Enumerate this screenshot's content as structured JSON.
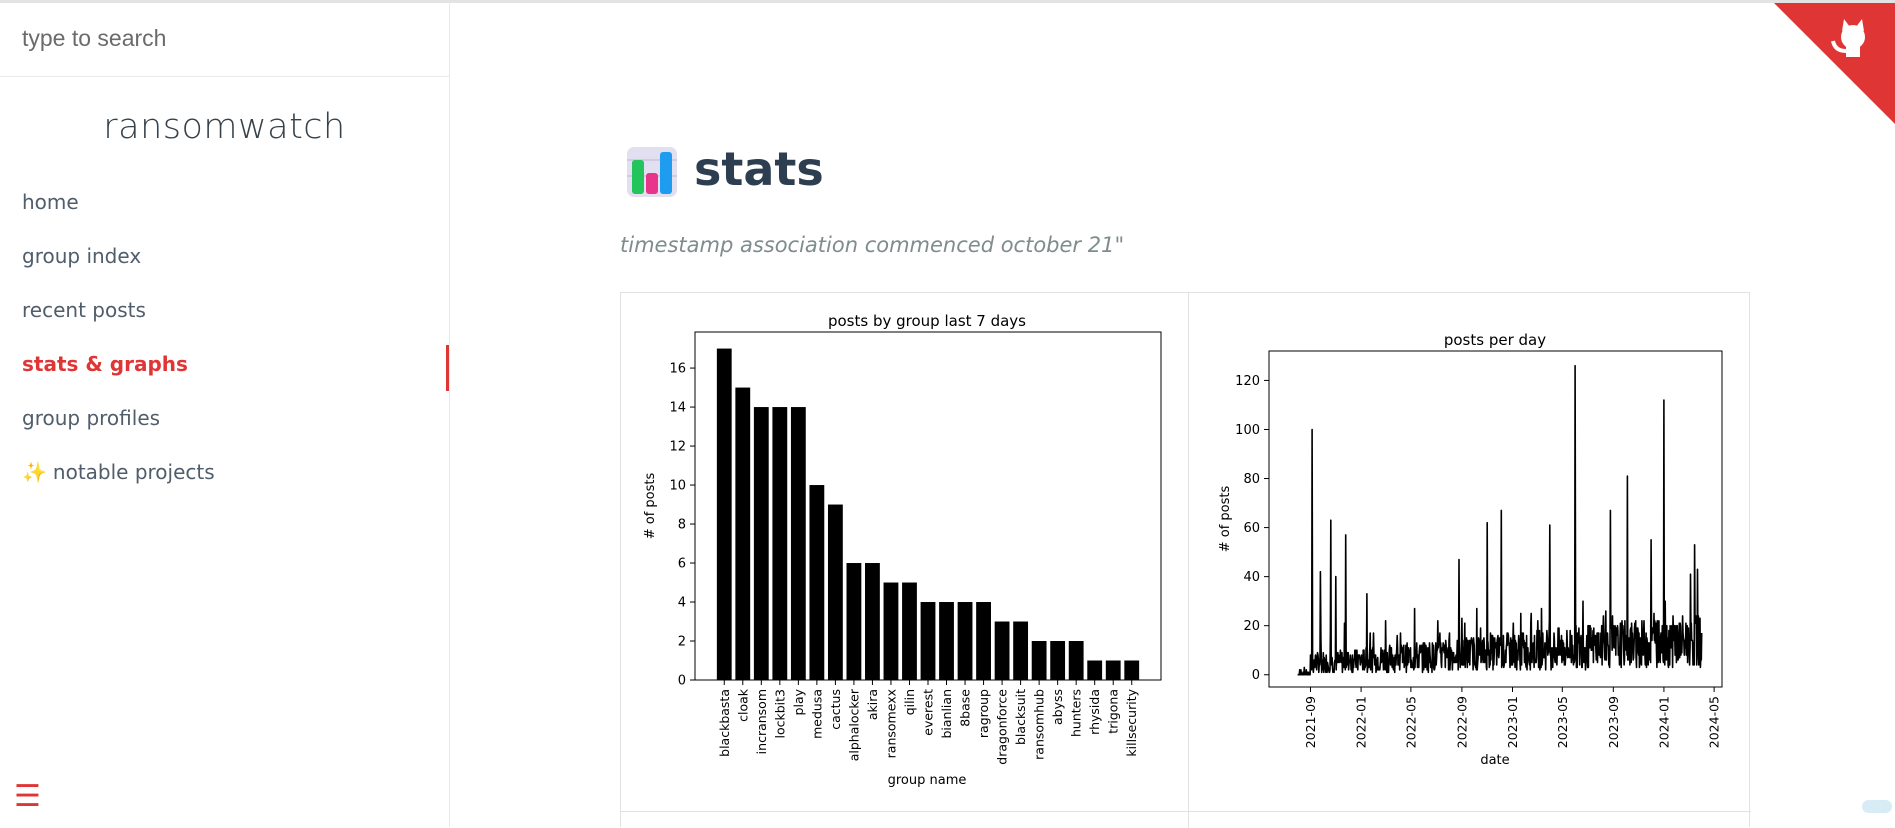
{
  "sidebar": {
    "search_placeholder": "type to search",
    "app_name": "ransomwatch",
    "items": [
      {
        "label": "home",
        "active": false
      },
      {
        "label": "group index",
        "active": false
      },
      {
        "label": "recent posts",
        "active": false
      },
      {
        "label": "stats & graphs",
        "active": true
      },
      {
        "label": "group profiles",
        "active": false
      },
      {
        "label": "notable projects",
        "icon": "sparkles-icon",
        "active": false
      }
    ]
  },
  "main": {
    "title": "stats",
    "title_icon": "bar-chart-icon",
    "subtitle": "timestamp association commenced october 21\""
  },
  "colors": {
    "accent": "#e03535",
    "title": "#2c3e50",
    "bar": "#000000"
  },
  "chart_data": [
    {
      "type": "bar",
      "title": "posts by group last 7 days",
      "xlabel": "group name",
      "ylabel": "# of posts",
      "ylim": [
        0,
        17.85
      ],
      "yticks": [
        0,
        2,
        4,
        6,
        8,
        10,
        12,
        14,
        16
      ],
      "categories": [
        "blackbasta",
        "cloak",
        "incransom",
        "lockbit3",
        "play",
        "medusa",
        "cactus",
        "alphalocker",
        "akira",
        "ransomexx",
        "qilin",
        "everest",
        "bianlian",
        "8base",
        "ragroup",
        "dragonforce",
        "blacksuit",
        "ransomhub",
        "abyss",
        "hunters",
        "rhysida",
        "trigona",
        "killsecurity"
      ],
      "values": [
        17,
        15,
        14,
        14,
        14,
        10,
        9,
        6,
        6,
        5,
        5,
        4,
        4,
        4,
        4,
        3,
        3,
        2,
        2,
        2,
        1,
        1,
        1
      ]
    },
    {
      "type": "line",
      "title": "posts per day",
      "xlabel": "date",
      "ylabel": "# of posts",
      "ylim": [
        -5,
        132
      ],
      "yticks": [
        0,
        20,
        40,
        60,
        80,
        100,
        120
      ],
      "xticks": [
        "2021-09",
        "2022-01",
        "2022-05",
        "2022-09",
        "2023-01",
        "2023-05",
        "2023-09",
        "2024-01",
        "2024-05"
      ],
      "xrange": [
        "2021-05-24",
        "2024-05-20"
      ],
      "spikes": [
        {
          "date": "2021-09-05",
          "value": 100
        },
        {
          "date": "2021-09-25",
          "value": 42
        },
        {
          "date": "2021-10-20",
          "value": 63
        },
        {
          "date": "2021-11-01",
          "value": 40
        },
        {
          "date": "2021-11-25",
          "value": 57
        },
        {
          "date": "2022-01-15",
          "value": 33
        },
        {
          "date": "2022-03-01",
          "value": 22
        },
        {
          "date": "2022-05-10",
          "value": 27
        },
        {
          "date": "2022-07-05",
          "value": 22
        },
        {
          "date": "2022-08-25",
          "value": 47
        },
        {
          "date": "2022-11-01",
          "value": 62
        },
        {
          "date": "2022-12-05",
          "value": 67
        },
        {
          "date": "2023-02-15",
          "value": 25
        },
        {
          "date": "2023-04-01",
          "value": 61
        },
        {
          "date": "2023-06-01",
          "value": 126
        },
        {
          "date": "2023-06-20",
          "value": 30
        },
        {
          "date": "2023-08-25",
          "value": 67
        },
        {
          "date": "2023-10-05",
          "value": 81
        },
        {
          "date": "2023-12-01",
          "value": 55
        },
        {
          "date": "2024-01-01",
          "value": 112
        },
        {
          "date": "2024-03-15",
          "value": 53
        },
        {
          "date": "2024-03-22",
          "value": 43
        }
      ]
    }
  ]
}
